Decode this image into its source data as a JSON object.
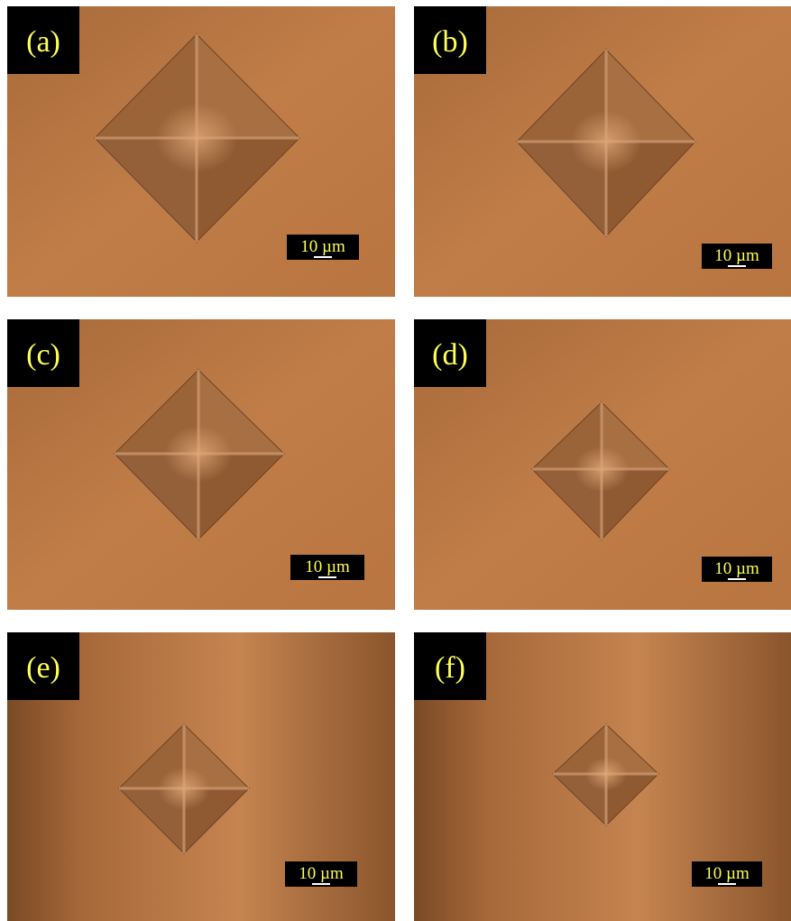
{
  "panels": [
    {
      "label": "(a)",
      "scale_bar": "10 µm"
    },
    {
      "label": "(b)",
      "scale_bar": "10 µm"
    },
    {
      "label": "(c)",
      "scale_bar": "10 µm"
    },
    {
      "label": "(d)",
      "scale_bar": "10 µm"
    },
    {
      "label": "(e)",
      "scale_bar": "10 µm"
    },
    {
      "label": "(f)",
      "scale_bar": "10 µm"
    }
  ]
}
